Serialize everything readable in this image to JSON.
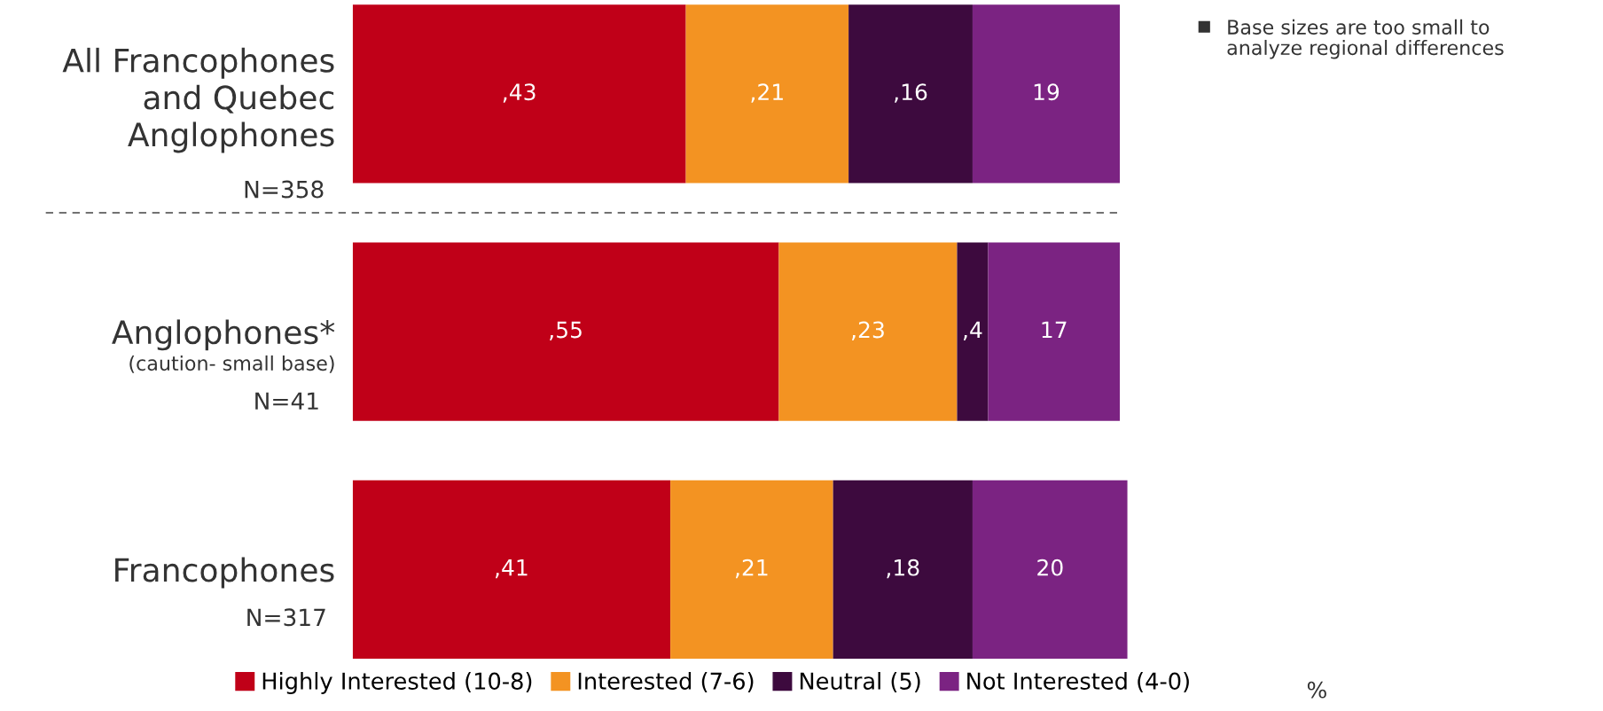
{
  "chart_data": {
    "type": "bar",
    "orientation": "horizontal",
    "stacked": true,
    "categories": [
      "All Francophones\nand Quebec\nAnglophones",
      "Anglophones*",
      "Francophones"
    ],
    "series": [
      {
        "name": "Highly Interested (10-8)",
        "color": "#c00018",
        "values": [
          43,
          55,
          41
        ],
        "value_labels": [
          ",43",
          ",55",
          ",41"
        ]
      },
      {
        "name": "Interested (7-6)",
        "color": "#f39322",
        "values": [
          21,
          23,
          21
        ],
        "value_labels": [
          ",21",
          ",23",
          ",21"
        ]
      },
      {
        "name": "Neutral (5)",
        "color": "#3d0a3e",
        "values": [
          16,
          4,
          18
        ],
        "value_labels": [
          ",16",
          ",4",
          ",18"
        ]
      },
      {
        "name": "Not Interested (4-0)",
        "color": "#7b2382",
        "values": [
          19,
          17,
          20
        ],
        "value_labels": [
          "19",
          "17",
          "20"
        ]
      }
    ],
    "xlim": [
      0,
      100
    ],
    "tick_labels": "y",
    "legend": "bottom",
    "grid": false,
    "annotations": [
      "N=358",
      "(caution- small base)",
      "N=41",
      "N=317",
      "%",
      "Base sizes are too small to\nanalyze regional differences"
    ]
  }
}
